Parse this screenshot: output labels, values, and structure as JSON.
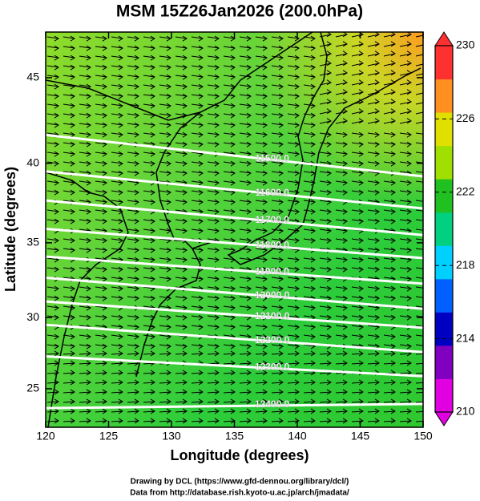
{
  "chart_data": {
    "type": "map",
    "title": "MSM 15Z26Jan2026 (200.0hPa)",
    "x_label": "Longitude (degrees)",
    "y_label": "Latitude  (degrees)",
    "projection": "mercator",
    "xlim": [
      120,
      150
    ],
    "ylim": [
      22.2,
      47.5
    ],
    "xticks": [
      120,
      125,
      130,
      135,
      140,
      145,
      150
    ],
    "yticks": [
      25,
      30,
      35,
      40,
      45
    ],
    "contours": [
      {
        "value": 11500,
        "label": "11500.0",
        "lon": [
          120,
          150
        ],
        "lat": [
          41.7,
          39.2
        ]
      },
      {
        "value": 11600,
        "label": "11600.0",
        "lon": [
          120,
          150
        ],
        "lat": [
          39.5,
          37.2
        ]
      },
      {
        "value": 11700,
        "label": "11700.0",
        "lon": [
          120,
          150
        ],
        "lat": [
          37.7,
          35.5
        ]
      },
      {
        "value": 11800,
        "label": "11800.0",
        "lon": [
          120,
          150
        ],
        "lat": [
          35.9,
          34.0
        ]
      },
      {
        "value": 11900,
        "label": "11900.0",
        "lon": [
          120,
          150
        ],
        "lat": [
          34.1,
          32.3
        ]
      },
      {
        "value": 12000,
        "label": "12000.0",
        "lon": [
          120,
          150
        ],
        "lat": [
          32.7,
          30.6
        ]
      },
      {
        "value": 12100,
        "label": "12100.0",
        "lon": [
          120,
          150
        ],
        "lat": [
          31.1,
          29.3
        ]
      },
      {
        "value": 12200,
        "label": "12200.0",
        "lon": [
          120,
          150
        ],
        "lat": [
          29.5,
          27.6
        ]
      },
      {
        "value": 12300,
        "label": "12300.0",
        "lon": [
          120,
          150
        ],
        "lat": [
          27.3,
          25.9
        ]
      },
      {
        "value": 12400,
        "label": "12400.0",
        "lon": [
          120,
          150
        ],
        "lat": [
          23.6,
          23.9
        ]
      }
    ],
    "contour_color": "#ffffff",
    "colorbar": {
      "range": [
        210,
        230
      ],
      "ticks": [
        210,
        214,
        218,
        222,
        226,
        230
      ],
      "colors": [
        "#e000e0",
        "#8000c0",
        "#0000c0",
        "#0060ff",
        "#00d0ff",
        "#00d080",
        "#20c020",
        "#a0e000",
        "#e0e000",
        "#ff9020",
        "#ff3030"
      ]
    },
    "footer": [
      "Drawing by DCL (https://www.gfd-dennou.org/library/dcl/)",
      "Data from http://database.rish.kyoto-u.ac.jp/arch/jmadata/"
    ]
  }
}
